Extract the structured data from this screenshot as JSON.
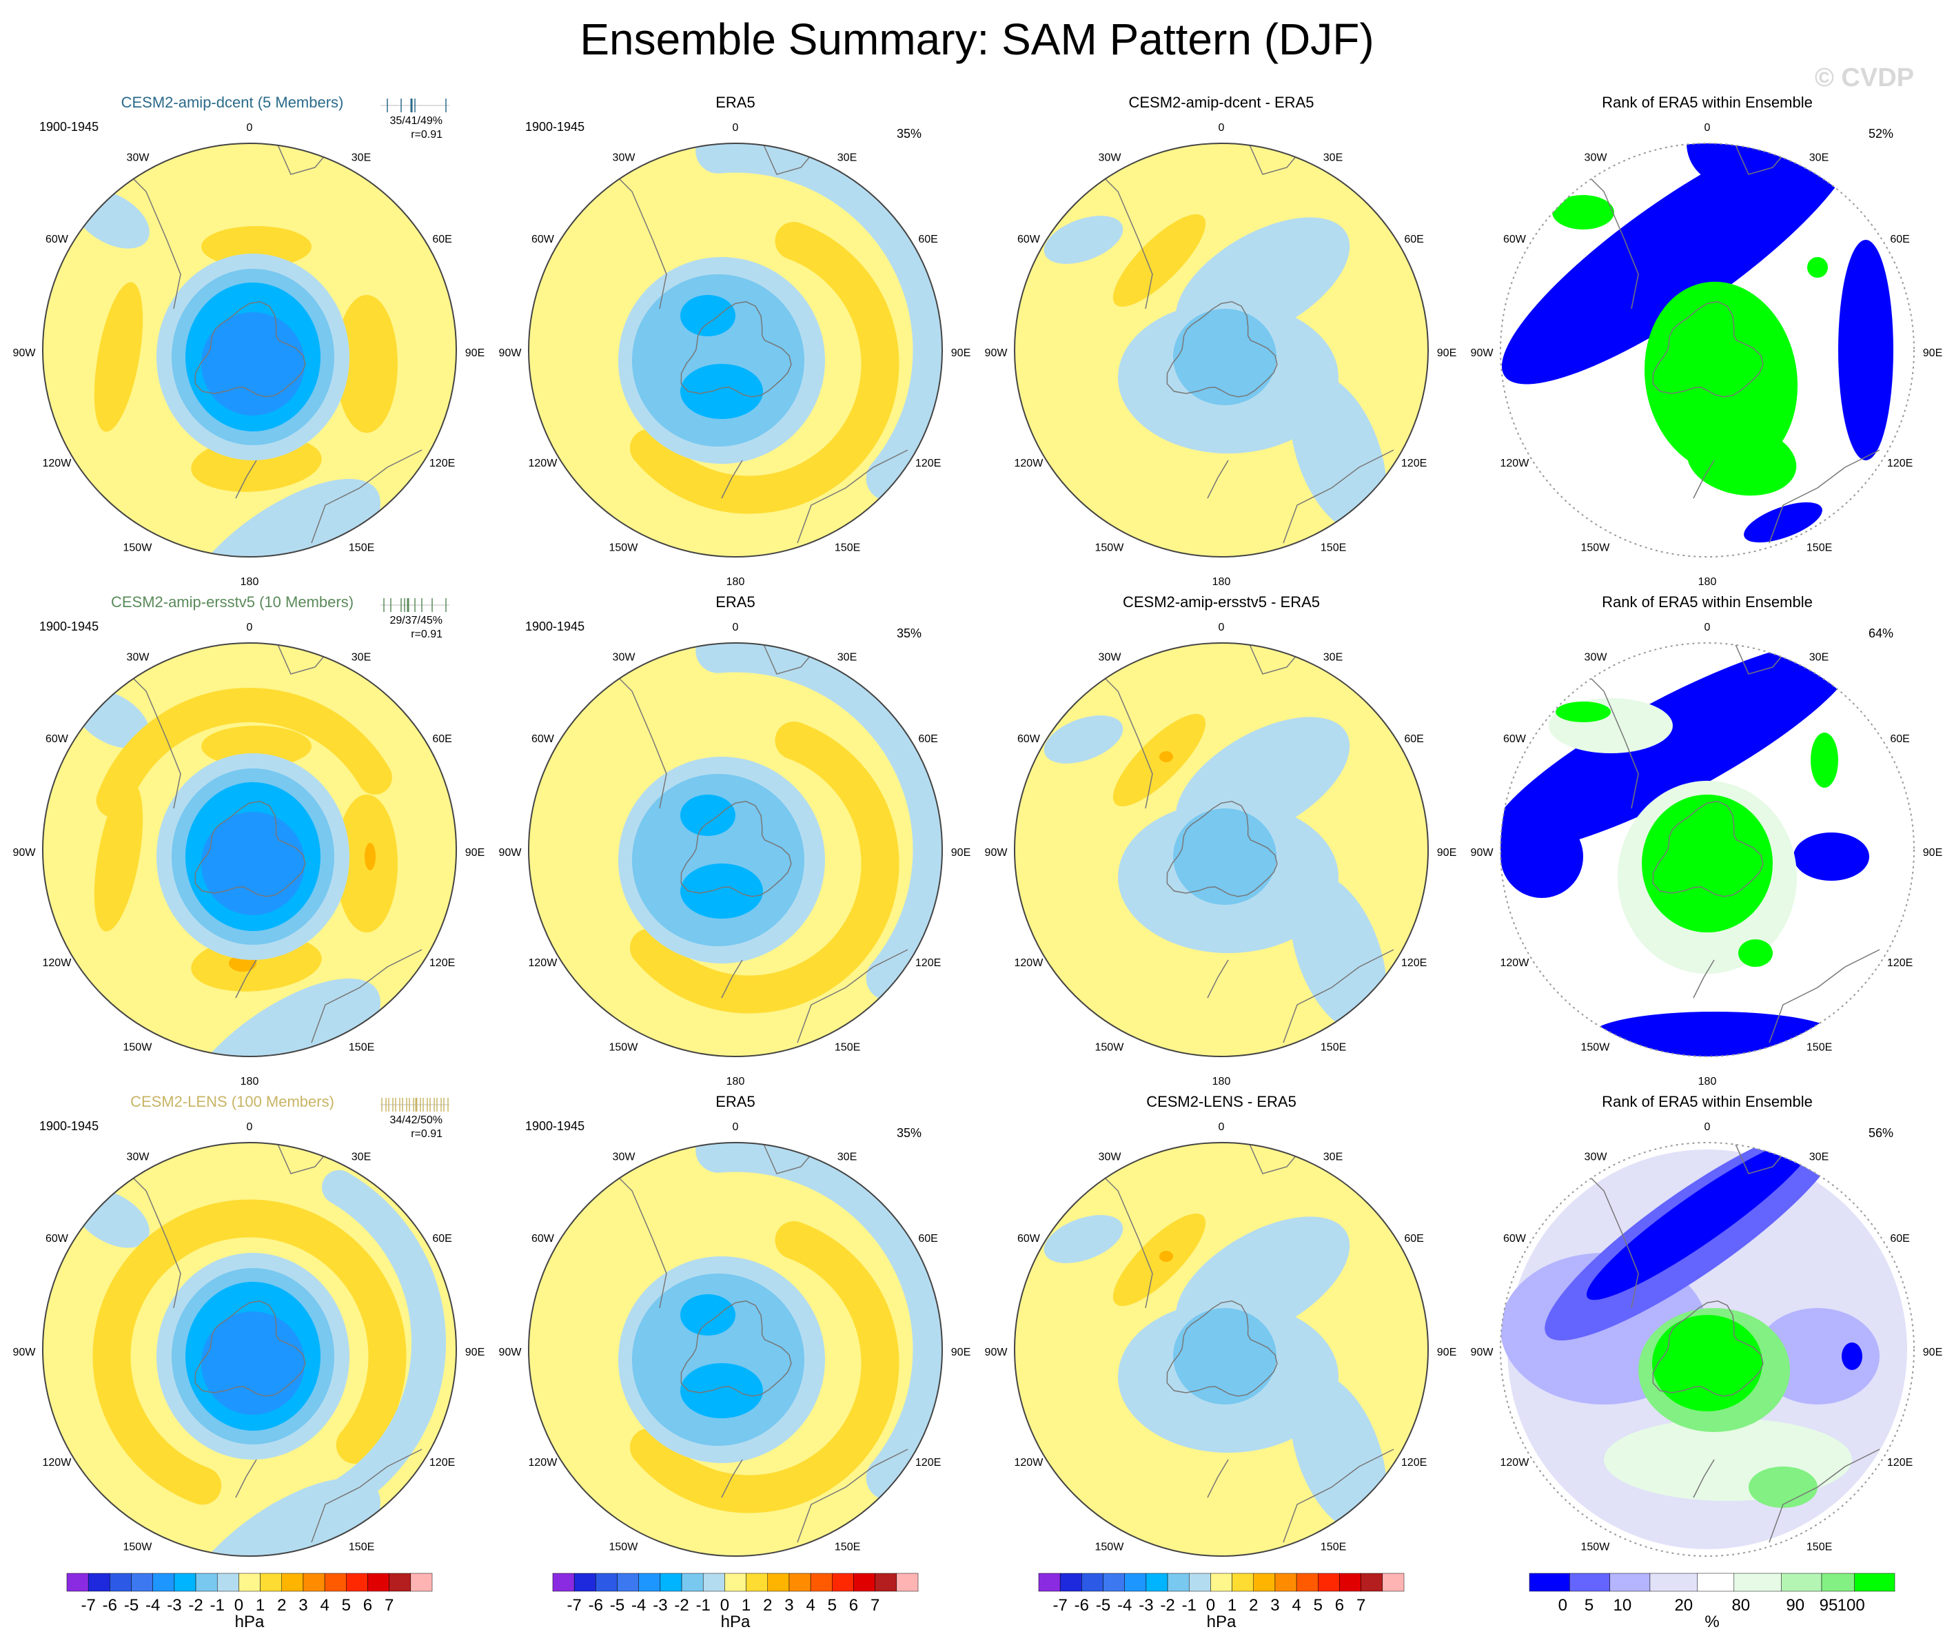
{
  "page": {
    "title": "Ensemble Summary: SAM Pattern (DJF)",
    "watermark": "© CVDP"
  },
  "chart_data": {
    "type": "heatmap",
    "description_rows": [
      "CESM2-amip-dcent",
      "CESM2-amip-ersstv5",
      "CESM2-LENS"
    ],
    "longitude_labels": [
      "0",
      "30E",
      "60E",
      "90E",
      "120E",
      "150E",
      "180",
      "150W",
      "120W",
      "90W",
      "60W",
      "30W"
    ],
    "colors": {
      "pressure_levels": [
        "#8a2be2",
        "#1e28dc",
        "#2c5ae6",
        "#3c78f0",
        "#1e96ff",
        "#00b4ff",
        "#78c8f0",
        "#b4dcf0",
        "#fff68c",
        "#ffdc32",
        "#ffb400",
        "#ff8c00",
        "#ff5a00",
        "#ff2800",
        "#e10000",
        "#b41e1e",
        "#ffb4b4"
      ],
      "rank_levels": [
        "#0000ff",
        "#6464ff",
        "#b4b4ff",
        "#e1e1f8",
        "#ffffff",
        "#e6fae6",
        "#b4f5b4",
        "#82f082",
        "#00ff00"
      ],
      "row1_label": "#2a6a8a",
      "row2_label": "#5a8a5a",
      "row3_label": "#c8b464",
      "background_yellow": "#fff68c",
      "light_blue": "#b4dcf0",
      "mid_blue": "#78c8f0",
      "blue": "#00b4ff",
      "dark_blue": "#1e96ff",
      "orange": "#ffdc32",
      "dark_orange": "#ffb400"
    },
    "rows": [
      {
        "model_title": "CESM2-amip-dcent (5 Members)",
        "period": "1900-1945",
        "stats_pct": "35/41/49%",
        "stats_r": "r=0.91",
        "obs_title": "ERA5",
        "obs_period": "1900-1945",
        "obs_pct": "35%",
        "diff_title": "CESM2-amip-dcent - ERA5",
        "rank_title": "Rank of ERA5 within Ensemble",
        "rank_pct": "52%"
      },
      {
        "model_title": "CESM2-amip-ersstv5 (10 Members)",
        "period": "1900-1945",
        "stats_pct": "29/37/45%",
        "stats_r": "r=0.91",
        "obs_title": "ERA5",
        "obs_period": "1900-1945",
        "obs_pct": "35%",
        "diff_title": "CESM2-amip-ersstv5 - ERA5",
        "rank_title": "Rank of ERA5 within Ensemble",
        "rank_pct": "64%"
      },
      {
        "model_title": "CESM2-LENS (100 Members)",
        "period": "1900-1945",
        "stats_pct": "34/42/50%",
        "stats_r": "r=0.91",
        "obs_title": "ERA5",
        "obs_period": "1900-1945",
        "obs_pct": "35%",
        "diff_title": "CESM2-LENS - ERA5",
        "rank_title": "Rank of ERA5 within Ensemble",
        "rank_pct": "56%"
      }
    ],
    "pressure_colorbar": {
      "labels": [
        "-7",
        "-6",
        "-5",
        "-4",
        "-3",
        "-2",
        "-1",
        "0",
        "1",
        "2",
        "3",
        "4",
        "5",
        "6",
        "7"
      ],
      "units": "hPa"
    },
    "rank_colorbar": {
      "labels": [
        "0",
        "5",
        "10",
        "20",
        "80",
        "90",
        "95",
        "100"
      ],
      "units": "%"
    }
  }
}
